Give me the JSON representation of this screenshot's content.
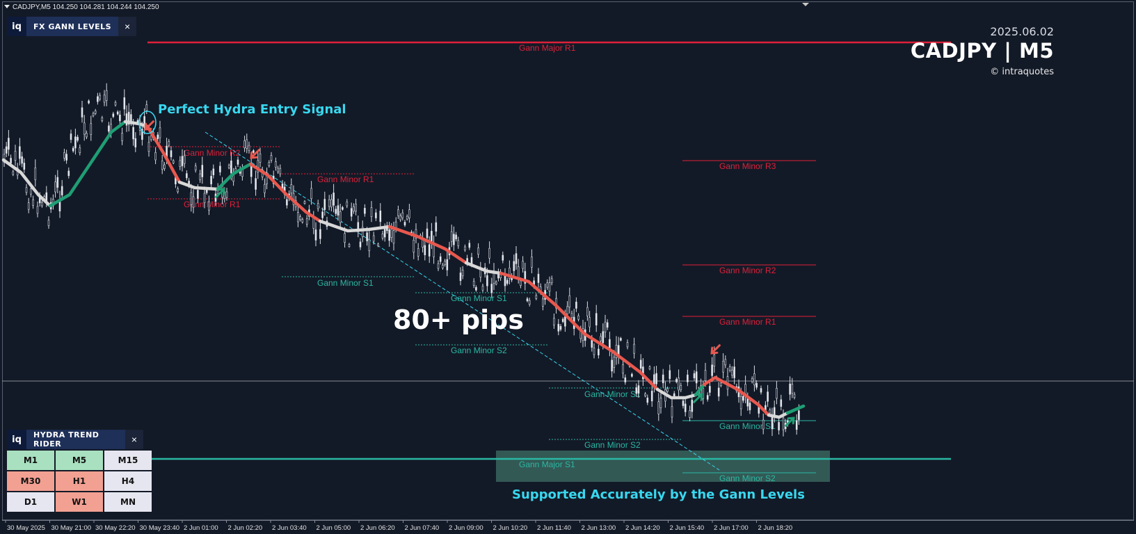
{
  "header": {
    "symbol_info": "CADJPY,M5  104.250 104.281 104.244 104.250"
  },
  "gann_panel": {
    "logo": "iq",
    "title": "FX GANN LEVELS",
    "close": "×"
  },
  "brand": {
    "date": "2025.06.02",
    "symbol": "CADJPY | M5",
    "credit": "© intraquotes"
  },
  "annotations": {
    "entry_signal": "Perfect Hydra Entry Signal",
    "pips": "80+ pips",
    "support_note": "Supported Accurately by the Gann Levels"
  },
  "gann_levels": {
    "major_r1": "Gann Major R1",
    "major_s1": "Gann Major S1",
    "minor_r1": "Gann Minor R1",
    "minor_r2": "Gann Minor R2",
    "minor_r3": "Gann Minor R3",
    "minor_s1": "Gann Minor S1",
    "minor_s2": "Gann Minor S2"
  },
  "hydra_panel": {
    "logo": "iq",
    "title": "HYDRA TREND RIDER",
    "close": "×",
    "timeframes": [
      {
        "label": "M1",
        "state": "up"
      },
      {
        "label": "M5",
        "state": "up"
      },
      {
        "label": "M15",
        "state": "neutral"
      },
      {
        "label": "M30",
        "state": "down"
      },
      {
        "label": "H1",
        "state": "down"
      },
      {
        "label": "H4",
        "state": "neutral"
      },
      {
        "label": "D1",
        "state": "neutral"
      },
      {
        "label": "W1",
        "state": "down"
      },
      {
        "label": "MN",
        "state": "neutral"
      }
    ]
  },
  "time_axis": [
    "30 May 2025",
    "30 May 21:00",
    "30 May 22:20",
    "30 May 23:40",
    "2 Jun 01:00",
    "2 Jun 02:20",
    "2 Jun 03:40",
    "2 Jun 05:00",
    "2 Jun 06:20",
    "2 Jun 07:40",
    "2 Jun 09:00",
    "2 Jun 10:20",
    "2 Jun 11:40",
    "2 Jun 13:00",
    "2 Jun 14:20",
    "2 Jun 15:40",
    "2 Jun 17:00",
    "2 Jun 18:20"
  ],
  "colors": {
    "background": "#131a27",
    "resistance": "#e0203a",
    "support": "#2ab8a4",
    "ma_down": "#e8584e",
    "ma_up": "#1f9e74",
    "ma_neutral": "#d8d8d8",
    "accent_cyan": "#38d8f0"
  }
}
